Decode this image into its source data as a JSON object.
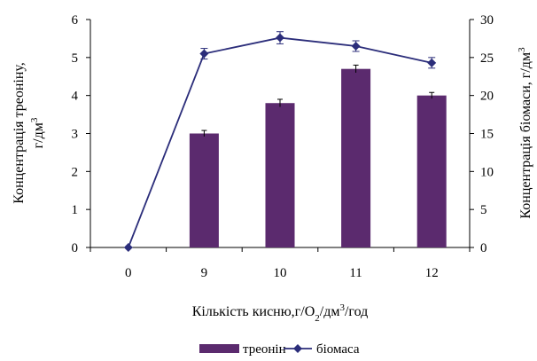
{
  "chart_data": {
    "type": "bar",
    "x_title": "Кількість кисню,г/О",
    "x_title_sub": "2",
    "x_title_mid": "/дм",
    "x_title_sup": "3",
    "x_title_end": "/год",
    "y_left_title": "Концентрація треоніну,",
    "y_left_title_line2": "г/дм",
    "y_left_title_sup": "3",
    "y_right_title": "Концентрація біомаси, г/дм",
    "y_right_title_sup": "3",
    "categories": [
      "0",
      "9",
      "10",
      "11",
      "12"
    ],
    "y_left_ticks": [
      "0",
      "1",
      "2",
      "3",
      "4",
      "5",
      "6"
    ],
    "y_right_ticks": [
      "0",
      "5",
      "10",
      "15",
      "20",
      "25",
      "30"
    ],
    "ylim_left": [
      0,
      6
    ],
    "ylim_right": [
      0,
      30
    ],
    "series": [
      {
        "name": "треонін",
        "type": "bar",
        "axis": "left",
        "color": "#5b2a6e",
        "values": [
          null,
          3.0,
          3.8,
          4.7,
          4.0
        ],
        "errors": [
          null,
          0.08,
          0.1,
          0.1,
          0.08
        ]
      },
      {
        "name": "біомаса",
        "type": "line",
        "axis": "right",
        "color": "#2b2d7a",
        "values": [
          0,
          25.5,
          27.6,
          26.5,
          24.3
        ],
        "errors": [
          0,
          0.7,
          0.8,
          0.7,
          0.7
        ]
      }
    ],
    "legend_position": "bottom"
  }
}
